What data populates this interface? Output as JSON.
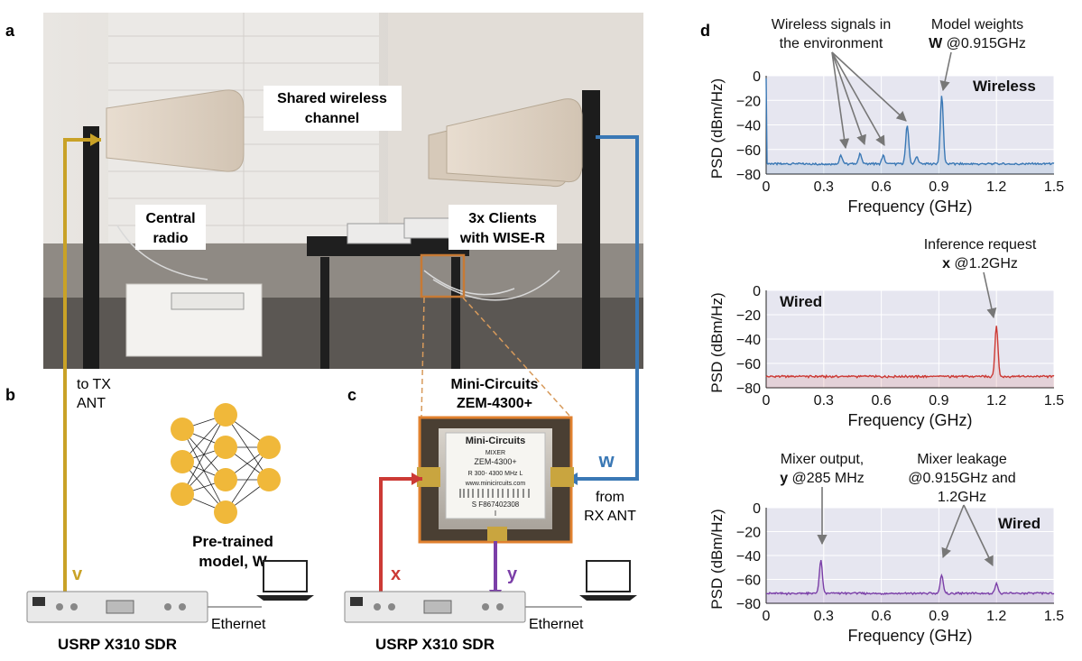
{
  "panel_labels": {
    "a": "a",
    "b": "b",
    "c": "c",
    "d": "d"
  },
  "photo": {
    "shared_channel": [
      "Shared wireless",
      "channel"
    ],
    "central_radio": [
      "Central",
      "radio"
    ],
    "clients": [
      "3x Clients",
      "with WISE-R"
    ]
  },
  "panel_b": {
    "to_tx": [
      "to TX",
      "ANT"
    ],
    "model_caption": [
      "Pre-trained",
      "model, W"
    ],
    "v_label": "v",
    "ethernet": "Ethernet",
    "device": "USRP X310 SDR"
  },
  "panel_c": {
    "mixer_title": [
      "Mini-Circuits",
      "ZEM-4300+"
    ],
    "mixer_brand": "Mini-Circuits",
    "mixer_sticker": [
      "MIXER",
      "ZEM-4300+",
      "R  300- 4300 MHz   L",
      "www.minicircuits.com",
      "S F867402308",
      "I"
    ],
    "w_label": "w",
    "from_rx": [
      "from",
      "RX ANT"
    ],
    "x_label": "x",
    "y_label": "y",
    "ethernet": "Ethernet",
    "device": "USRP X310 SDR"
  },
  "colors": {
    "wireless": "#3a78b5",
    "wired_request": "#cc3a35",
    "wired_output": "#7b3fa8",
    "tx_line": "#c9a227",
    "node": "#f0b83a"
  },
  "chart_data": [
    {
      "type": "line",
      "panel_tag": "Wireless",
      "xlabel": "Frequency (GHz)",
      "ylabel": "PSD (dBm/Hz)",
      "xlim": [
        0,
        1.5
      ],
      "ylim": [
        -80,
        0
      ],
      "xticks": [
        "0",
        "0.3",
        "0.6",
        "0.9",
        "1.2",
        "1.5"
      ],
      "yticks": [
        "0",
        "−20",
        "−40",
        "−60",
        "−80"
      ],
      "annotations": [
        {
          "lines": [
            "Wireless signals in",
            "the environment"
          ]
        },
        {
          "lines": [
            "Model weights",
            "W @0.915GHz"
          ]
        }
      ],
      "series": [
        {
          "color": "#3a78b5",
          "baseline": -72,
          "peaks": [
            [
              0.39,
              -65
            ],
            [
              0.49,
              -63
            ],
            [
              0.61,
              -65
            ],
            [
              0.735,
              -40
            ],
            [
              0.785,
              -66
            ],
            [
              0.915,
              -16
            ]
          ]
        }
      ]
    },
    {
      "type": "line",
      "panel_tag": "Wired",
      "xlabel": "Frequency (GHz)",
      "ylabel": "PSD (dBm/Hz)",
      "xlim": [
        0,
        1.5
      ],
      "ylim": [
        -80,
        0
      ],
      "xticks": [
        "0",
        "0.3",
        "0.6",
        "0.9",
        "1.2",
        "1.5"
      ],
      "yticks": [
        "0",
        "−20",
        "−40",
        "−60",
        "−80"
      ],
      "annotations": [
        {
          "lines": [
            "Inference request",
            "x @1.2GHz"
          ]
        }
      ],
      "series": [
        {
          "color": "#cc3a35",
          "baseline": -71,
          "peaks": [
            [
              1.2,
              -29
            ]
          ]
        }
      ]
    },
    {
      "type": "line",
      "panel_tag": "Wired",
      "xlabel": "Frequency (GHz)",
      "ylabel": "PSD (dBm/Hz)",
      "xlim": [
        0,
        1.5
      ],
      "ylim": [
        -80,
        0
      ],
      "xticks": [
        "0",
        "0.3",
        "0.6",
        "0.9",
        "1.2",
        "1.5"
      ],
      "yticks": [
        "0",
        "−20",
        "−40",
        "−60",
        "−80"
      ],
      "annotations": [
        {
          "lines": [
            "Mixer output,",
            "y @285 MHz"
          ]
        },
        {
          "lines": [
            "Mixer leakage",
            "@0.915GHz and",
            "1.2GHz"
          ]
        }
      ],
      "series": [
        {
          "color": "#7b3fa8",
          "baseline": -72,
          "peaks": [
            [
              0.285,
              -44
            ],
            [
              0.915,
              -56
            ],
            [
              1.2,
              -63
            ]
          ]
        }
      ]
    }
  ]
}
